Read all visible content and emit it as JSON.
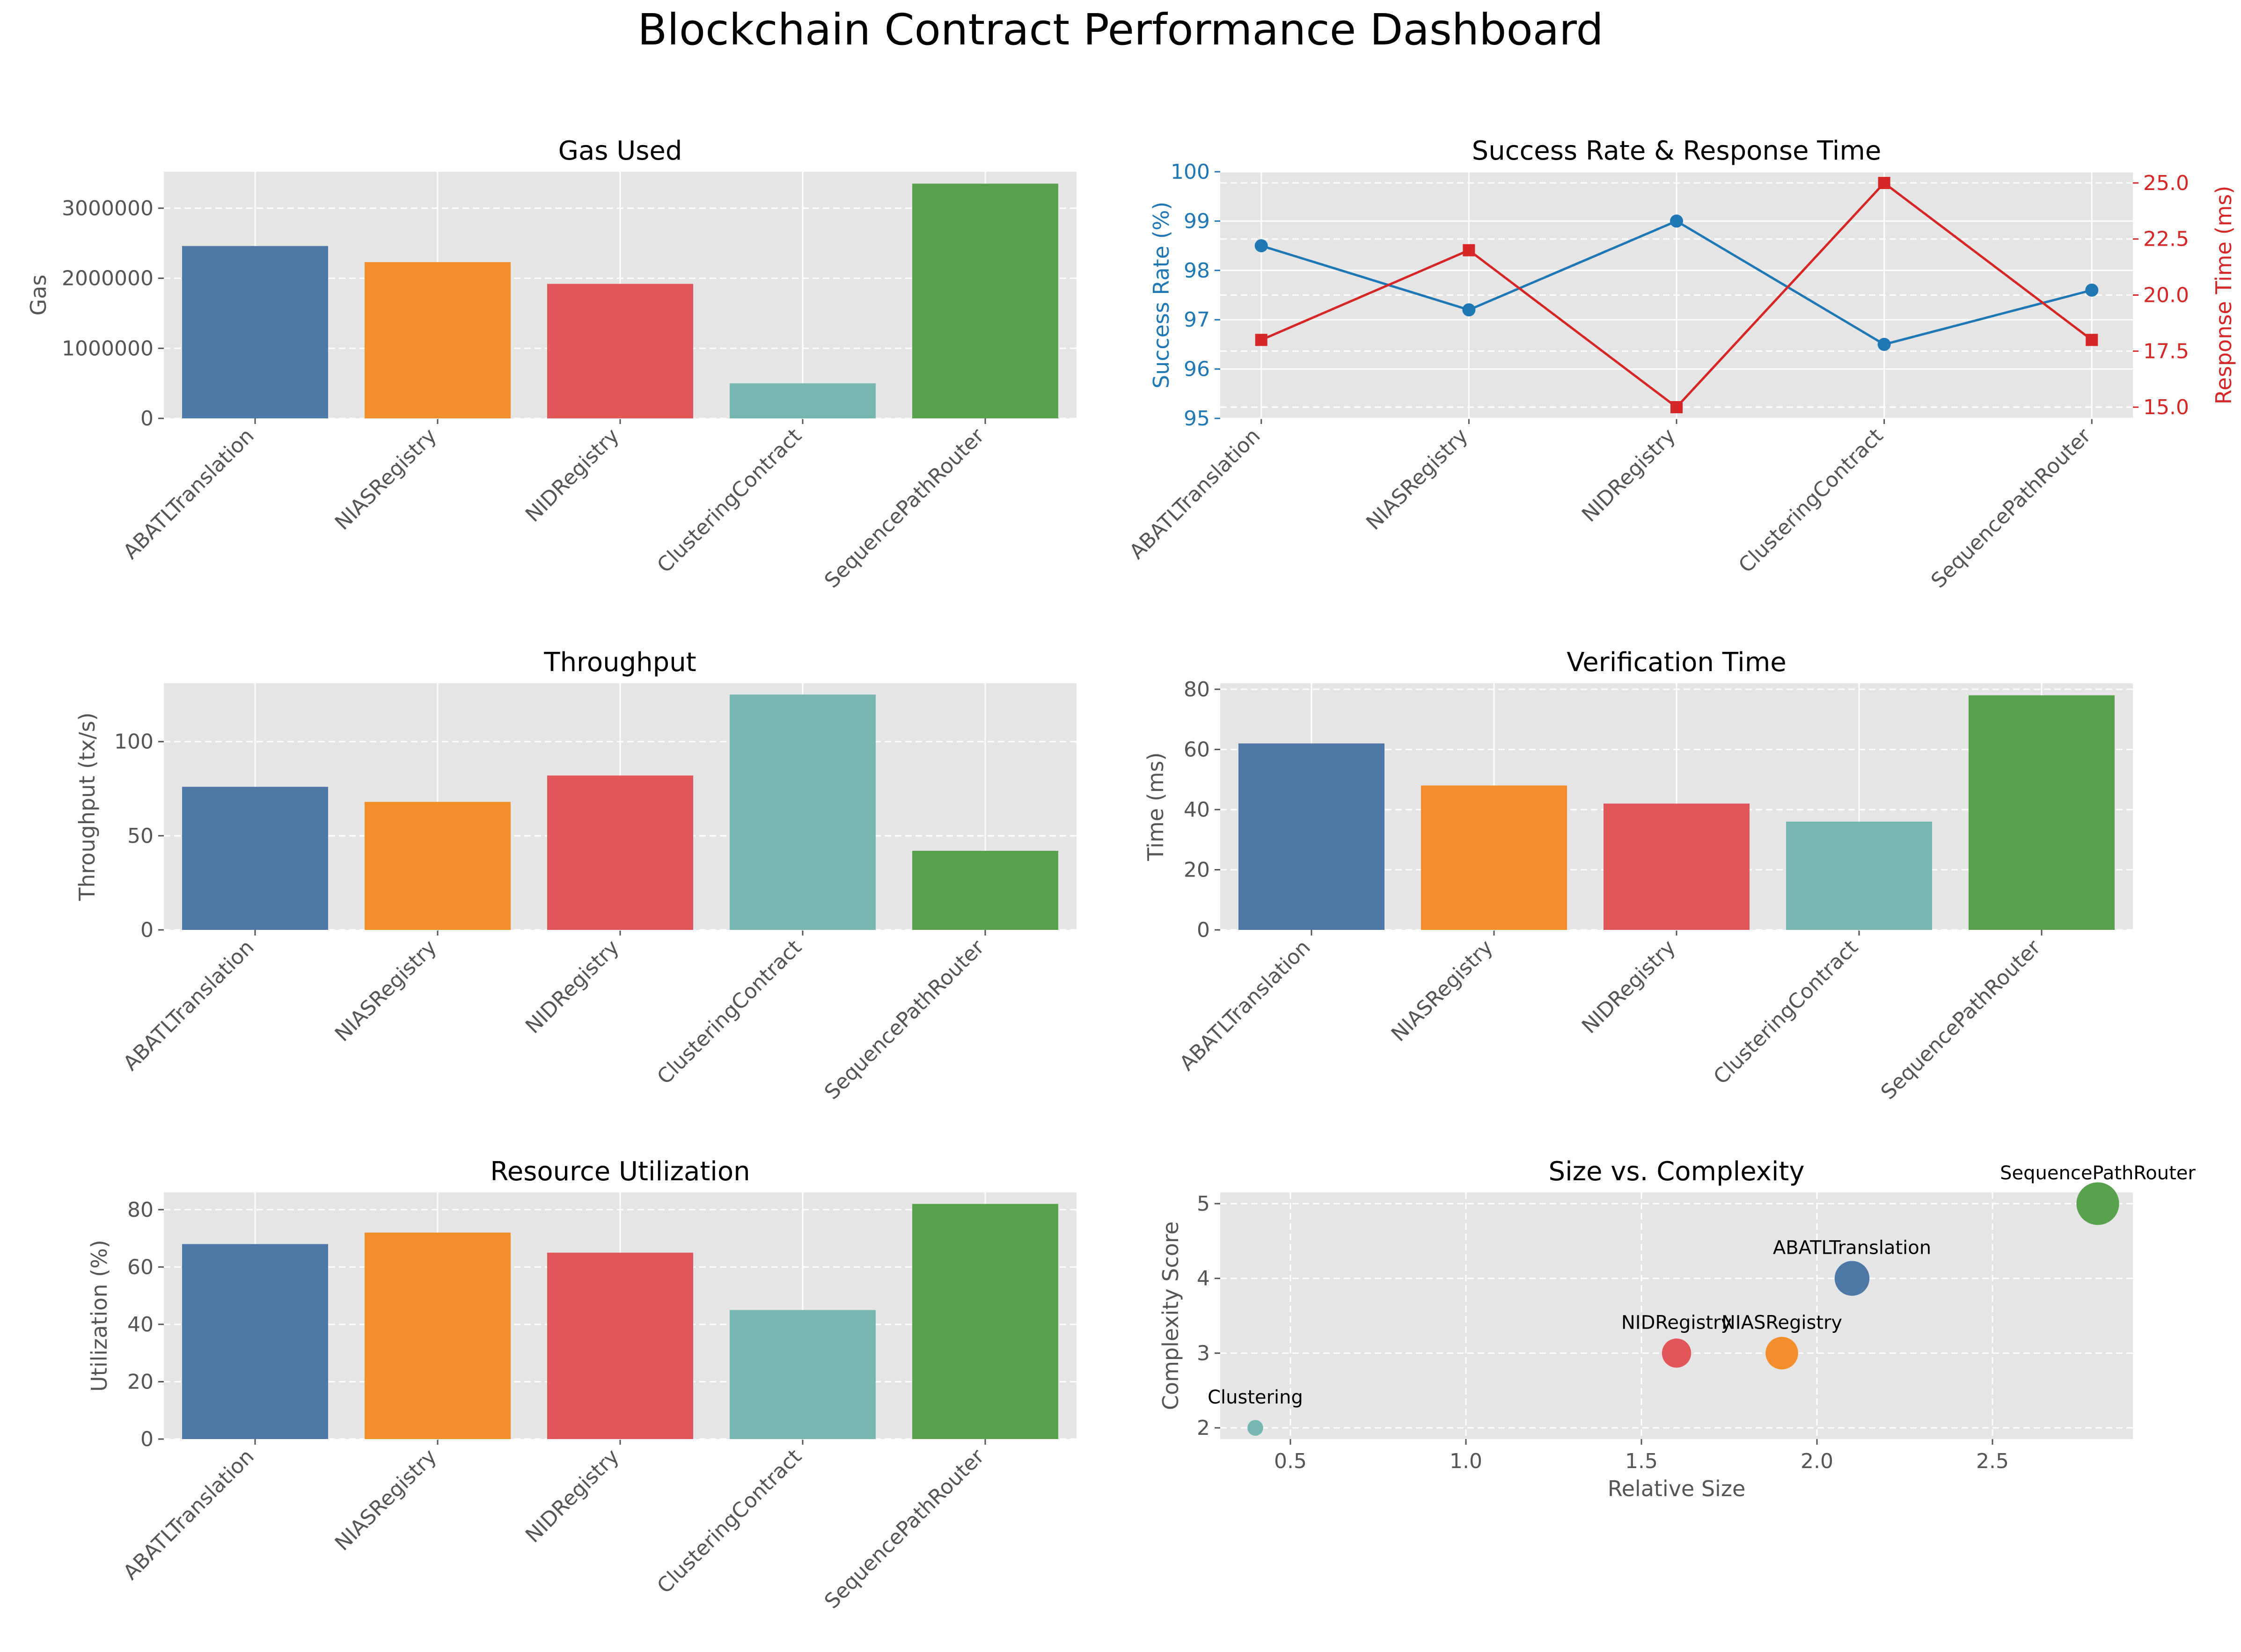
{
  "title": "Blockchain Contract Performance Dashboard",
  "chart_data": [
    {
      "type": "bar",
      "title": "Gas Used",
      "xlabel": "",
      "ylabel": "Gas",
      "categories": [
        "ABATLTranslation",
        "NIASRegistry",
        "NIDRegistry",
        "ClusteringContract",
        "SequencePathRouter"
      ],
      "values": [
        2460000,
        2230000,
        1920000,
        500000,
        3350000
      ],
      "ylim": [
        0,
        3520000
      ],
      "yticks": [
        0,
        1000000,
        2000000,
        3000000
      ],
      "ytick_labels": [
        "0",
        "1000000",
        "2000000",
        "3000000"
      ],
      "colors": [
        "#4e79a7",
        "#f28e2b",
        "#e15759",
        "#76b7b2",
        "#59a14f"
      ],
      "grid": true
    },
    {
      "type": "line",
      "title": "Success Rate & Response Time",
      "xlabel": "",
      "categories": [
        "ABATLTranslation",
        "NIASRegistry",
        "NIDRegistry",
        "ClusteringContract",
        "SequencePathRouter"
      ],
      "grid": true,
      "series": [
        {
          "name": "Success Rate (%)",
          "axis": "left",
          "values": [
            98.5,
            97.2,
            99.0,
            96.5,
            97.6
          ],
          "color": "#1f77b4",
          "marker": "circle"
        },
        {
          "name": "Response Time (ms)",
          "axis": "right",
          "values": [
            18,
            22,
            15,
            25,
            18
          ],
          "color": "#d62728",
          "marker": "square"
        }
      ],
      "ylabel": "Success Rate (%)",
      "ylim": [
        95,
        100
      ],
      "yticks": [
        95,
        96,
        97,
        98,
        99,
        100
      ],
      "ytick_labels": [
        "95",
        "96",
        "97",
        "98",
        "99",
        "100"
      ],
      "y2label": "Response Time (ms)",
      "y2lim": [
        14.5,
        25.5
      ],
      "y2ticks": [
        15,
        17.5,
        20,
        22.5,
        25
      ],
      "y2tick_labels": [
        "15.0",
        "17.5",
        "20.0",
        "22.5",
        "25.0"
      ]
    },
    {
      "type": "bar",
      "title": "Throughput",
      "xlabel": "",
      "ylabel": "Throughput (tx/s)",
      "categories": [
        "ABATLTranslation",
        "NIASRegistry",
        "NIDRegistry",
        "ClusteringContract",
        "SequencePathRouter"
      ],
      "values": [
        76,
        68,
        82,
        125,
        42
      ],
      "ylim": [
        0,
        131
      ],
      "yticks": [
        0,
        50,
        100
      ],
      "ytick_labels": [
        "0",
        "50",
        "100"
      ],
      "colors": [
        "#4e79a7",
        "#f28e2b",
        "#e15759",
        "#76b7b2",
        "#59a14f"
      ],
      "grid": true
    },
    {
      "type": "bar",
      "title": "Verification Time",
      "xlabel": "",
      "ylabel": "Time (ms)",
      "categories": [
        "ABATLTranslation",
        "NIASRegistry",
        "NIDRegistry",
        "ClusteringContract",
        "SequencePathRouter"
      ],
      "values": [
        62,
        48,
        42,
        36,
        78
      ],
      "ylim": [
        0,
        82
      ],
      "yticks": [
        0,
        20,
        40,
        60,
        80
      ],
      "ytick_labels": [
        "0",
        "20",
        "40",
        "60",
        "80"
      ],
      "colors": [
        "#4e79a7",
        "#f28e2b",
        "#e15759",
        "#76b7b2",
        "#59a14f"
      ],
      "grid": true
    },
    {
      "type": "bar",
      "title": "Resource Utilization",
      "xlabel": "",
      "ylabel": "Utilization (%)",
      "categories": [
        "ABATLTranslation",
        "NIASRegistry",
        "NIDRegistry",
        "ClusteringContract",
        "SequencePathRouter"
      ],
      "values": [
        68,
        72,
        65,
        45,
        82
      ],
      "ylim": [
        0,
        86
      ],
      "yticks": [
        0,
        20,
        40,
        60,
        80
      ],
      "ytick_labels": [
        "0",
        "20",
        "40",
        "60",
        "80"
      ],
      "colors": [
        "#4e79a7",
        "#f28e2b",
        "#e15759",
        "#76b7b2",
        "#59a14f"
      ],
      "grid": true
    },
    {
      "type": "scatter",
      "title": "Size vs. Complexity",
      "xlabel": "Relative Size",
      "ylabel": "Complexity Score",
      "xlim": [
        0.3,
        2.9
      ],
      "ylim": [
        1.85,
        5.15
      ],
      "xticks": [
        0.5,
        1.0,
        1.5,
        2.0,
        2.5
      ],
      "xtick_labels": [
        "0.5",
        "1.0",
        "1.5",
        "2.0",
        "2.5"
      ],
      "yticks": [
        2,
        3,
        4,
        5
      ],
      "ytick_labels": [
        "2",
        "3",
        "4",
        "5"
      ],
      "grid": true,
      "points": [
        {
          "label": "ABATLTranslation",
          "x": 2.1,
          "y": 4,
          "size": 2.1,
          "color": "#4e79a7"
        },
        {
          "label": "NIASRegistry",
          "x": 1.9,
          "y": 3,
          "size": 1.9,
          "color": "#f28e2b"
        },
        {
          "label": "NIDRegistry",
          "x": 1.6,
          "y": 3,
          "size": 1.6,
          "color": "#e15759"
        },
        {
          "label": "Clustering",
          "x": 0.4,
          "y": 2,
          "size": 0.4,
          "color": "#76b7b2"
        },
        {
          "label": "SequencePathRouter",
          "x": 2.8,
          "y": 5,
          "size": 2.8,
          "color": "#59a14f"
        }
      ]
    }
  ]
}
